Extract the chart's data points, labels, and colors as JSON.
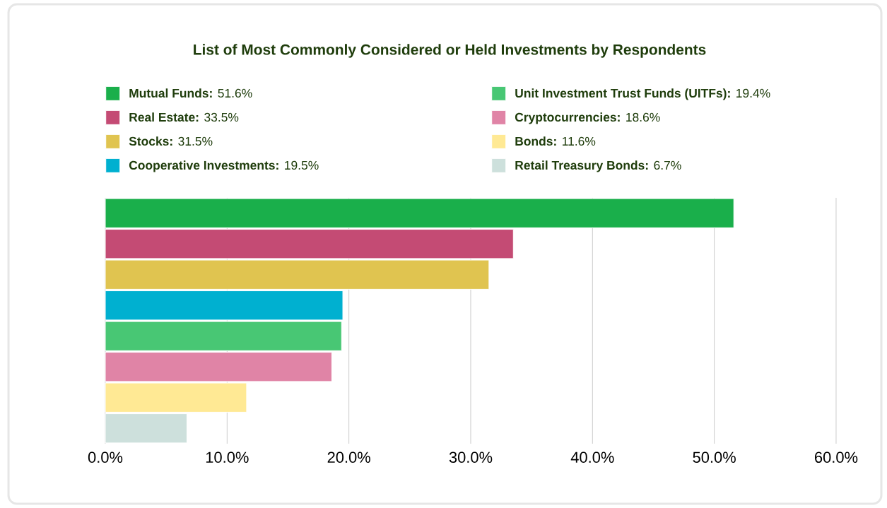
{
  "chart_data": {
    "type": "bar",
    "orientation": "horizontal",
    "title": "List of Most Commonly Considered or Held Investments by Respondents",
    "categories": [
      null,
      null,
      null,
      null,
      null,
      null,
      null,
      null
    ],
    "series": [
      {
        "name": "**Mutual Funds:** 51.6%",
        "color": "#1aaf4b",
        "values": [
          51.6,
          null,
          null,
          null,
          null,
          null,
          null,
          null
        ]
      },
      {
        "name": "**Real Estate:** 33.5%",
        "color": "#c44b74",
        "values": [
          null,
          33.5,
          null,
          null,
          null,
          null,
          null,
          null
        ]
      },
      {
        "name": "**Stocks:** 31.5%",
        "color": "#e0c450",
        "values": [
          null,
          null,
          31.5,
          null,
          null,
          null,
          null,
          null
        ]
      },
      {
        "name": "**Cooperative Investments:** 19.5%",
        "color": "#00b0d0",
        "values": [
          null,
          null,
          null,
          19.5,
          null,
          null,
          null,
          null
        ]
      },
      {
        "name": "**Unit Investment Trust Funds (UITFs):** 19.4%",
        "color": "#48c774",
        "values": [
          null,
          null,
          null,
          null,
          19.4,
          null,
          null,
          null
        ]
      },
      {
        "name": "**Cryptocurrencies:** 18.6%",
        "color": "#e084a6",
        "values": [
          null,
          null,
          null,
          null,
          null,
          18.6,
          null,
          null
        ]
      },
      {
        "name": "**Bonds:** 11.6%",
        "color": "#ffe994",
        "values": [
          null,
          null,
          null,
          null,
          null,
          null,
          11.6,
          null
        ]
      },
      {
        "name": "**Retail Treasury Bonds:** 6.7%",
        "color": "#cde0dc",
        "values": [
          null,
          null,
          null,
          null,
          null,
          null,
          null,
          6.7
        ]
      }
    ],
    "xlim": [
      0,
      60
    ],
    "xticks": [
      {
        "value": 0,
        "label": "0.0%"
      },
      {
        "value": 10,
        "label": "10.0%"
      },
      {
        "value": 20,
        "label": "20.0%"
      },
      {
        "value": 30,
        "label": "30.0%"
      },
      {
        "value": 40,
        "label": "40.0%"
      },
      {
        "value": 50,
        "label": "50.0%"
      },
      {
        "value": 60,
        "label": "60.0%"
      }
    ],
    "grid": "x",
    "legend": "top",
    "tick_labels": "x"
  }
}
